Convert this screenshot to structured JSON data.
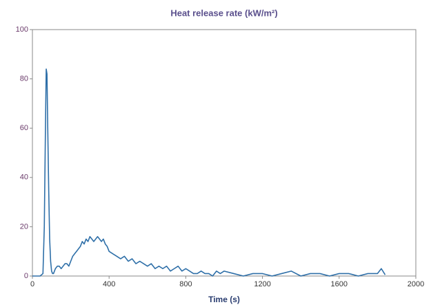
{
  "chart_data": {
    "type": "line",
    "title": "Heat release rate  (kW/m²)",
    "x_label": "Time (s)",
    "x": [
      0,
      40,
      55,
      62,
      68,
      72,
      76,
      80,
      85,
      90,
      95,
      100,
      105,
      110,
      120,
      130,
      140,
      150,
      160,
      170,
      180,
      190,
      200,
      210,
      220,
      230,
      240,
      250,
      260,
      270,
      280,
      290,
      300,
      310,
      320,
      330,
      340,
      350,
      360,
      370,
      380,
      390,
      400,
      420,
      440,
      460,
      480,
      500,
      520,
      540,
      560,
      580,
      600,
      620,
      640,
      660,
      680,
      700,
      720,
      740,
      760,
      780,
      800,
      820,
      840,
      860,
      880,
      900,
      920,
      940,
      960,
      980,
      1000,
      1050,
      1100,
      1150,
      1200,
      1250,
      1300,
      1350,
      1400,
      1450,
      1500,
      1550,
      1600,
      1650,
      1700,
      1750,
      1800,
      1820,
      1840
    ],
    "series": [
      {
        "name": "Heat release rate",
        "color": "#2e6fa8",
        "values": [
          0,
          0,
          1,
          20,
          60,
          84,
          82,
          60,
          35,
          15,
          6,
          2,
          1,
          1,
          3,
          4,
          4,
          3,
          4,
          5,
          5,
          4,
          6,
          8,
          9,
          10,
          11,
          12,
          14,
          13,
          15,
          14,
          16,
          15,
          14,
          15,
          16,
          15,
          14,
          15,
          13,
          12,
          10,
          9,
          8,
          7,
          8,
          6,
          7,
          5,
          6,
          5,
          4,
          5,
          3,
          4,
          3,
          4,
          2,
          3,
          4,
          2,
          3,
          2,
          1,
          1,
          2,
          1,
          1,
          0,
          2,
          1,
          2,
          1,
          0,
          1,
          1,
          0,
          1,
          2,
          0,
          1,
          1,
          0,
          1,
          1,
          0,
          1,
          1,
          3,
          0.5
        ]
      }
    ],
    "xlim": [
      0,
      2000
    ],
    "xticks": [
      0,
      400,
      800,
      1200,
      1600,
      2000
    ],
    "ylim": [
      0,
      100
    ],
    "yticks": [
      0,
      20,
      40,
      60,
      80,
      100
    ]
  }
}
